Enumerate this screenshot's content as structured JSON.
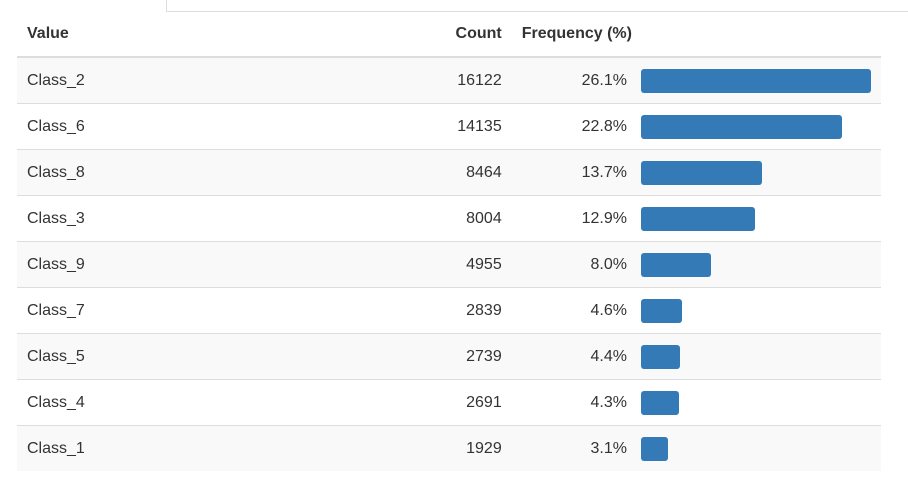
{
  "table": {
    "headers": {
      "value": "Value",
      "count": "Count",
      "frequency": "Frequency (%)"
    },
    "bar_color": "#337ab7",
    "max_frequency": 26.1,
    "rows": [
      {
        "value": "Class_2",
        "count": "16122",
        "percent": "26.1%",
        "frequency": 26.1
      },
      {
        "value": "Class_6",
        "count": "14135",
        "percent": "22.8%",
        "frequency": 22.8
      },
      {
        "value": "Class_8",
        "count": "8464",
        "percent": "13.7%",
        "frequency": 13.7
      },
      {
        "value": "Class_3",
        "count": "8004",
        "percent": "12.9%",
        "frequency": 12.9
      },
      {
        "value": "Class_9",
        "count": "4955",
        "percent": "8.0%",
        "frequency": 8.0
      },
      {
        "value": "Class_7",
        "count": "2839",
        "percent": "4.6%",
        "frequency": 4.6
      },
      {
        "value": "Class_5",
        "count": "2739",
        "percent": "4.4%",
        "frequency": 4.4
      },
      {
        "value": "Class_4",
        "count": "2691",
        "percent": "4.3%",
        "frequency": 4.3
      },
      {
        "value": "Class_1",
        "count": "1929",
        "percent": "3.1%",
        "frequency": 3.1
      }
    ]
  }
}
